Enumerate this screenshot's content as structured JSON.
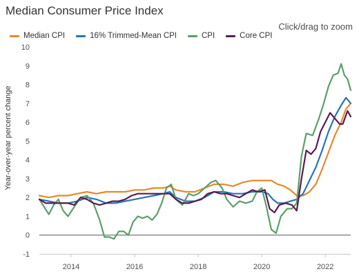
{
  "page": {
    "title": "Median Consumer Price Index",
    "hint": "Click/drag to zoom"
  },
  "chart_data": {
    "type": "line",
    "title": "Median Consumer Price Index",
    "xlabel": "",
    "ylabel": "Year-over-year percent change",
    "xlim": [
      2013.0,
      2022.8
    ],
    "ylim": [
      -1,
      10
    ],
    "x_ticks": [
      "2014",
      "2016",
      "2018",
      "2020",
      "2022"
    ],
    "y_ticks": [
      "-1",
      "0",
      "1",
      "2",
      "3",
      "4",
      "5",
      "6",
      "7",
      "8",
      "9",
      "10"
    ],
    "legend_position": "top-left",
    "grid": false,
    "series": [
      {
        "name": "Median CPI",
        "color": "#e8882a",
        "points": [
          [
            2013.0,
            2.1
          ],
          [
            2013.3,
            2.0
          ],
          [
            2013.6,
            2.1
          ],
          [
            2013.9,
            2.1
          ],
          [
            2014.2,
            2.2
          ],
          [
            2014.5,
            2.3
          ],
          [
            2014.8,
            2.2
          ],
          [
            2015.1,
            2.3
          ],
          [
            2015.4,
            2.3
          ],
          [
            2015.7,
            2.3
          ],
          [
            2016.0,
            2.4
          ],
          [
            2016.3,
            2.4
          ],
          [
            2016.6,
            2.5
          ],
          [
            2016.9,
            2.5
          ],
          [
            2017.1,
            2.6
          ],
          [
            2017.3,
            2.4
          ],
          [
            2017.6,
            2.3
          ],
          [
            2017.9,
            2.3
          ],
          [
            2018.2,
            2.5
          ],
          [
            2018.5,
            2.7
          ],
          [
            2018.8,
            2.7
          ],
          [
            2019.1,
            2.6
          ],
          [
            2019.4,
            2.8
          ],
          [
            2019.7,
            2.9
          ],
          [
            2020.0,
            2.9
          ],
          [
            2020.3,
            2.9
          ],
          [
            2020.5,
            2.7
          ],
          [
            2020.7,
            2.6
          ],
          [
            2020.9,
            2.4
          ],
          [
            2021.1,
            2.1
          ],
          [
            2021.3,
            2.1
          ],
          [
            2021.5,
            2.3
          ],
          [
            2021.7,
            2.7
          ],
          [
            2021.9,
            3.5
          ],
          [
            2022.1,
            4.4
          ],
          [
            2022.3,
            5.3
          ],
          [
            2022.5,
            6.0
          ],
          [
            2022.65,
            6.7
          ],
          [
            2022.8,
            7.0
          ]
        ]
      },
      {
        "name": "16% Trimmed-Mean CPI",
        "color": "#2474b5",
        "points": [
          [
            2013.0,
            1.9
          ],
          [
            2013.3,
            1.8
          ],
          [
            2013.6,
            1.7
          ],
          [
            2013.9,
            1.7
          ],
          [
            2014.2,
            1.8
          ],
          [
            2014.5,
            2.0
          ],
          [
            2014.8,
            1.9
          ],
          [
            2015.1,
            1.7
          ],
          [
            2015.4,
            1.7
          ],
          [
            2015.7,
            1.8
          ],
          [
            2016.0,
            1.9
          ],
          [
            2016.3,
            2.0
          ],
          [
            2016.6,
            2.1
          ],
          [
            2016.9,
            2.2
          ],
          [
            2017.1,
            2.3
          ],
          [
            2017.3,
            2.0
          ],
          [
            2017.6,
            1.8
          ],
          [
            2017.9,
            1.8
          ],
          [
            2018.2,
            2.0
          ],
          [
            2018.5,
            2.3
          ],
          [
            2018.8,
            2.3
          ],
          [
            2019.1,
            2.2
          ],
          [
            2019.4,
            2.2
          ],
          [
            2019.7,
            2.3
          ],
          [
            2020.0,
            2.3
          ],
          [
            2020.2,
            2.2
          ],
          [
            2020.35,
            1.9
          ],
          [
            2020.5,
            1.7
          ],
          [
            2020.7,
            1.7
          ],
          [
            2020.9,
            1.8
          ],
          [
            2021.1,
            1.9
          ],
          [
            2021.3,
            2.2
          ],
          [
            2021.5,
            2.9
          ],
          [
            2021.7,
            3.6
          ],
          [
            2021.9,
            4.5
          ],
          [
            2022.1,
            5.5
          ],
          [
            2022.3,
            6.3
          ],
          [
            2022.5,
            6.9
          ],
          [
            2022.65,
            7.3
          ],
          [
            2022.8,
            7.0
          ]
        ]
      },
      {
        "name": "CPI",
        "color": "#5a9e6a",
        "points": [
          [
            2013.0,
            1.9
          ],
          [
            2013.15,
            1.5
          ],
          [
            2013.3,
            1.1
          ],
          [
            2013.45,
            1.6
          ],
          [
            2013.6,
            1.9
          ],
          [
            2013.75,
            1.3
          ],
          [
            2013.9,
            1.0
          ],
          [
            2014.1,
            1.5
          ],
          [
            2014.3,
            2.0
          ],
          [
            2014.5,
            2.1
          ],
          [
            2014.7,
            1.7
          ],
          [
            2014.9,
            0.8
          ],
          [
            2015.05,
            -0.1
          ],
          [
            2015.2,
            -0.1
          ],
          [
            2015.35,
            -0.2
          ],
          [
            2015.5,
            0.2
          ],
          [
            2015.65,
            0.2
          ],
          [
            2015.8,
            0.0
          ],
          [
            2015.95,
            0.7
          ],
          [
            2016.1,
            1.0
          ],
          [
            2016.25,
            0.9
          ],
          [
            2016.4,
            1.0
          ],
          [
            2016.55,
            0.8
          ],
          [
            2016.7,
            1.1
          ],
          [
            2016.85,
            1.7
          ],
          [
            2017.0,
            2.5
          ],
          [
            2017.15,
            2.7
          ],
          [
            2017.3,
            1.9
          ],
          [
            2017.5,
            1.6
          ],
          [
            2017.7,
            2.2
          ],
          [
            2017.85,
            2.1
          ],
          [
            2018.0,
            2.2
          ],
          [
            2018.2,
            2.5
          ],
          [
            2018.4,
            2.8
          ],
          [
            2018.55,
            2.9
          ],
          [
            2018.75,
            2.5
          ],
          [
            2018.9,
            1.9
          ],
          [
            2019.1,
            1.5
          ],
          [
            2019.3,
            1.8
          ],
          [
            2019.5,
            1.7
          ],
          [
            2019.7,
            1.8
          ],
          [
            2019.85,
            2.3
          ],
          [
            2020.0,
            2.5
          ],
          [
            2020.15,
            1.5
          ],
          [
            2020.3,
            0.3
          ],
          [
            2020.45,
            0.1
          ],
          [
            2020.6,
            1.0
          ],
          [
            2020.8,
            1.4
          ],
          [
            2020.95,
            1.4
          ],
          [
            2021.1,
            1.7
          ],
          [
            2021.25,
            4.2
          ],
          [
            2021.4,
            5.4
          ],
          [
            2021.6,
            5.3
          ],
          [
            2021.8,
            6.2
          ],
          [
            2021.95,
            7.0
          ],
          [
            2022.1,
            7.9
          ],
          [
            2022.25,
            8.5
          ],
          [
            2022.4,
            8.6
          ],
          [
            2022.5,
            9.1
          ],
          [
            2022.6,
            8.5
          ],
          [
            2022.7,
            8.3
          ],
          [
            2022.8,
            7.7
          ]
        ]
      },
      {
        "name": "Core CPI",
        "color": "#5b1a4e",
        "points": [
          [
            2013.0,
            1.9
          ],
          [
            2013.2,
            1.7
          ],
          [
            2013.45,
            1.7
          ],
          [
            2013.7,
            1.7
          ],
          [
            2013.9,
            1.7
          ],
          [
            2014.1,
            1.6
          ],
          [
            2014.3,
            2.0
          ],
          [
            2014.5,
            1.9
          ],
          [
            2014.7,
            1.7
          ],
          [
            2014.9,
            1.6
          ],
          [
            2015.1,
            1.7
          ],
          [
            2015.3,
            1.8
          ],
          [
            2015.5,
            1.8
          ],
          [
            2015.7,
            1.9
          ],
          [
            2015.9,
            2.1
          ],
          [
            2016.1,
            2.2
          ],
          [
            2016.3,
            2.2
          ],
          [
            2016.5,
            2.2
          ],
          [
            2016.7,
            2.2
          ],
          [
            2016.9,
            2.2
          ],
          [
            2017.1,
            2.2
          ],
          [
            2017.3,
            1.9
          ],
          [
            2017.5,
            1.7
          ],
          [
            2017.7,
            1.7
          ],
          [
            2017.9,
            1.8
          ],
          [
            2018.1,
            1.9
          ],
          [
            2018.3,
            2.2
          ],
          [
            2018.5,
            2.3
          ],
          [
            2018.7,
            2.2
          ],
          [
            2018.9,
            2.2
          ],
          [
            2019.1,
            2.1
          ],
          [
            2019.3,
            2.0
          ],
          [
            2019.5,
            2.2
          ],
          [
            2019.7,
            2.4
          ],
          [
            2019.9,
            2.3
          ],
          [
            2020.1,
            2.4
          ],
          [
            2020.25,
            1.4
          ],
          [
            2020.4,
            1.2
          ],
          [
            2020.55,
            1.6
          ],
          [
            2020.75,
            1.7
          ],
          [
            2020.95,
            1.6
          ],
          [
            2021.1,
            1.3
          ],
          [
            2021.25,
            3.0
          ],
          [
            2021.4,
            4.5
          ],
          [
            2021.55,
            4.3
          ],
          [
            2021.7,
            4.6
          ],
          [
            2021.85,
            5.5
          ],
          [
            2022.0,
            6.0
          ],
          [
            2022.15,
            6.5
          ],
          [
            2022.3,
            6.2
          ],
          [
            2022.45,
            5.9
          ],
          [
            2022.55,
            5.9
          ],
          [
            2022.7,
            6.6
          ],
          [
            2022.8,
            6.3
          ]
        ]
      }
    ]
  }
}
